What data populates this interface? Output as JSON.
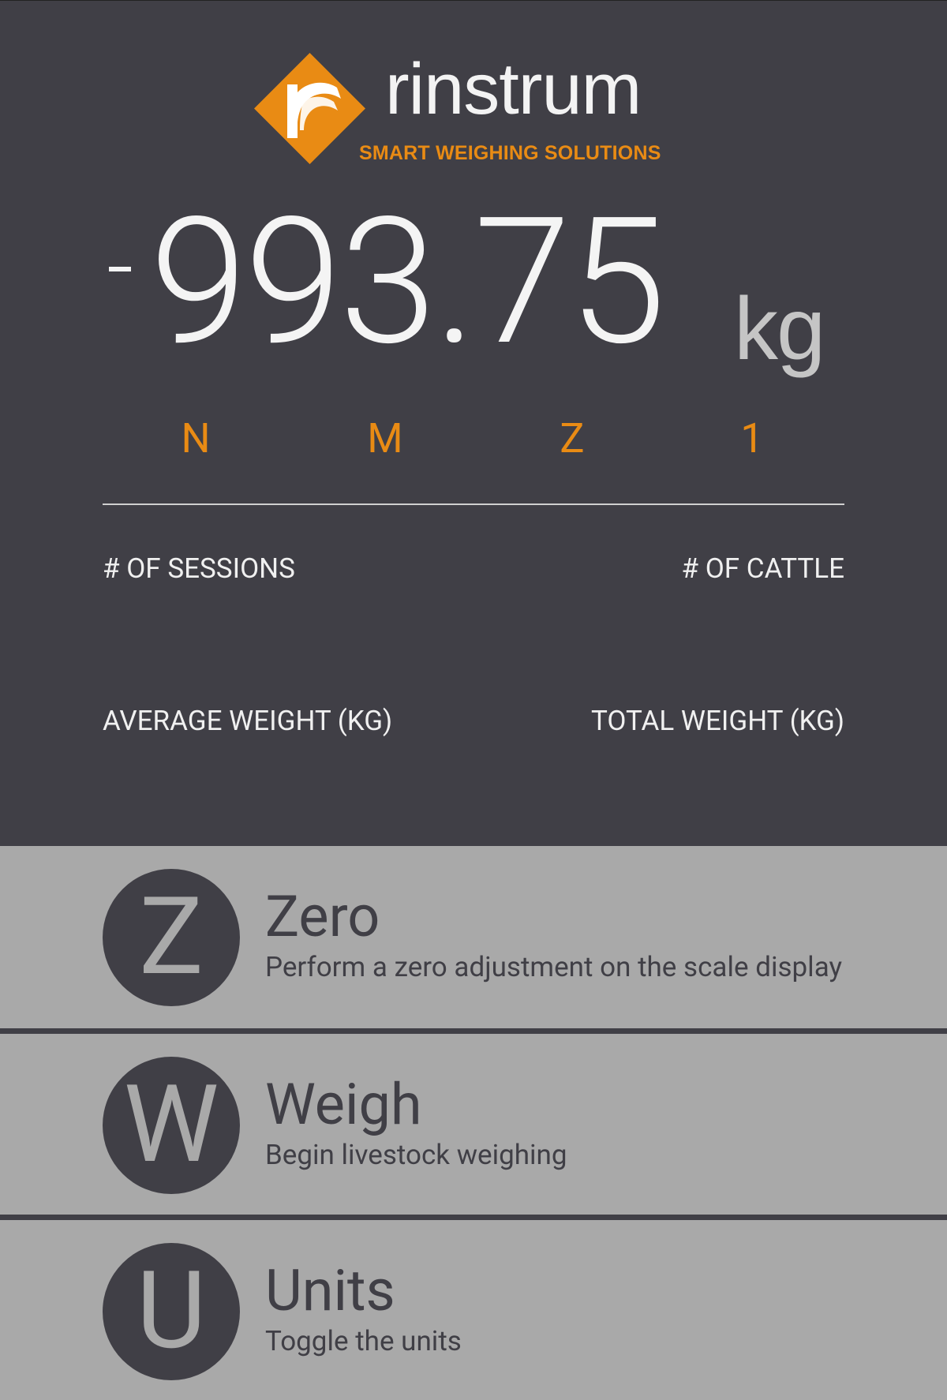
{
  "logo": {
    "wordmark": "rinstrum",
    "tagline": "SMART WEIGHING SOLUTIONS",
    "colors": {
      "accent": "#e98b14",
      "mark_bg": "#e98b14",
      "mark_fg": "#ffffff"
    }
  },
  "scale": {
    "sign": "-",
    "weight": "993.75",
    "unit": "kg"
  },
  "indicators": [
    "N",
    "M",
    "Z",
    "1"
  ],
  "stats": {
    "sessions_label": "# OF SESSIONS",
    "sessions_value": "",
    "cattle_label": "# OF CATTLE",
    "cattle_value": "",
    "average_label": "AVERAGE WEIGHT (KG)",
    "average_value": "",
    "total_label": "TOTAL WEIGHT (KG)",
    "total_value": ""
  },
  "actions": [
    {
      "icon": "Z",
      "title": "Zero",
      "description": "Perform a zero adjustment on the scale display"
    },
    {
      "icon": "W",
      "title": "Weigh",
      "description": "Begin livestock weighing"
    },
    {
      "icon": "U",
      "title": "Units",
      "description": "Toggle the units"
    }
  ],
  "colors": {
    "panel": "#403f46",
    "actions_bg": "#a9a9a9",
    "accent": "#e98b14",
    "text_light": "#f4f4f4",
    "unit_text": "#c5c5c5"
  }
}
